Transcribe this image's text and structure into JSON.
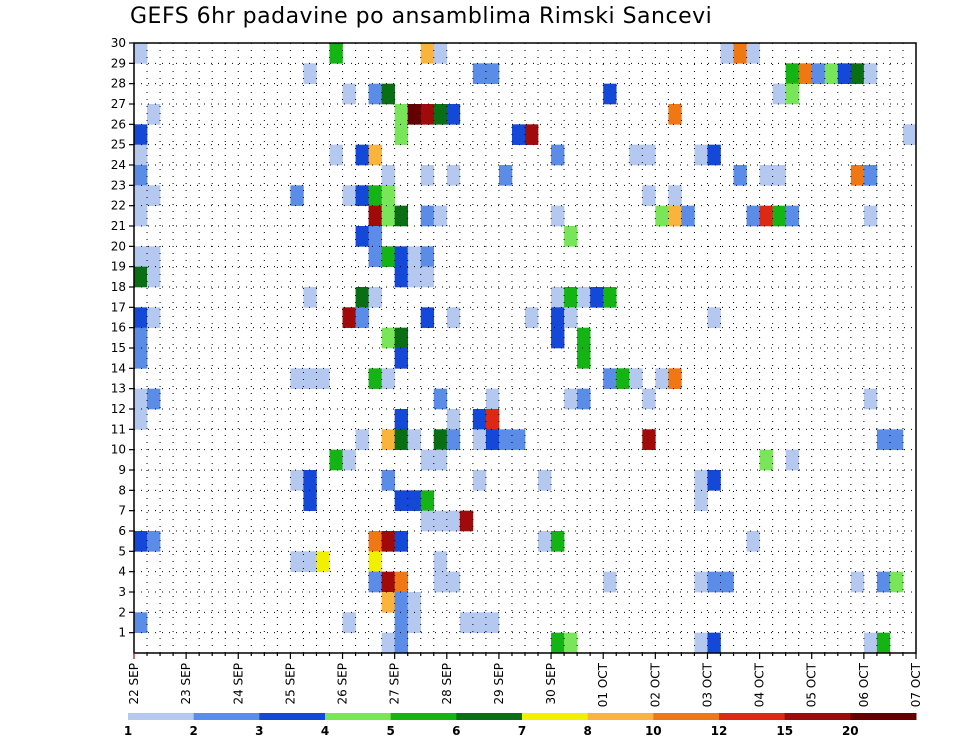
{
  "title": "GEFS 6hr padavine po ansamblima Rimski Sancevi",
  "chart_data": {
    "type": "heatmap",
    "title": "GEFS 6hr padavine po ansamblima Rimski Sancevi",
    "x_tick_labels": [
      "22 SEP",
      "23 SEP",
      "24 SEP",
      "25 SEP",
      "26 SEP",
      "27 SEP",
      "28 SEP",
      "29 SEP",
      "30 SEP",
      "01 OCT",
      "02 OCT",
      "03 OCT",
      "04 OCT",
      "05 OCT",
      "06 OCT",
      "07 OCT"
    ],
    "x_unit": "6-hour step",
    "x_range": [
      0,
      60
    ],
    "y_tick_labels": [
      "1",
      "2",
      "3",
      "4",
      "5",
      "6",
      "7",
      "8",
      "9",
      "10",
      "11",
      "12",
      "13",
      "14",
      "15",
      "16",
      "17",
      "18",
      "19",
      "20",
      "21",
      "22",
      "23",
      "24",
      "25",
      "26",
      "27",
      "28",
      "29",
      "30"
    ],
    "y_range": [
      0,
      30
    ],
    "grid": true,
    "colorbar": {
      "labels": [
        "1",
        "2",
        "3",
        "4",
        "5",
        "6",
        "7",
        "8",
        "10",
        "12",
        "15",
        "20"
      ],
      "colors": [
        "#b4c8f0",
        "#5a8ce8",
        "#1448d8",
        "#78e658",
        "#14b414",
        "#0a6e14",
        "#f0f000",
        "#fab43c",
        "#f07814",
        "#dc2814",
        "#a00a0a",
        "#640000"
      ]
    },
    "cells": [
      [
        1,
        30,
        1
      ],
      [
        16,
        30,
        5
      ],
      [
        23,
        30,
        8
      ],
      [
        24,
        30,
        1
      ],
      [
        46,
        30,
        1
      ],
      [
        47,
        30,
        9
      ],
      [
        48,
        30,
        1
      ],
      [
        14,
        29,
        1
      ],
      [
        27,
        29,
        2
      ],
      [
        28,
        29,
        2
      ],
      [
        51,
        29,
        5
      ],
      [
        52,
        29,
        9
      ],
      [
        53,
        29,
        2
      ],
      [
        54,
        29,
        4
      ],
      [
        55,
        29,
        3
      ],
      [
        56,
        29,
        6
      ],
      [
        57,
        29,
        1
      ],
      [
        17,
        28,
        1
      ],
      [
        19,
        28,
        2
      ],
      [
        20,
        28,
        6
      ],
      [
        37,
        28,
        3
      ],
      [
        50,
        28,
        1
      ],
      [
        51,
        28,
        4
      ],
      [
        2,
        27,
        1
      ],
      [
        21,
        27,
        4
      ],
      [
        22,
        27,
        12
      ],
      [
        23,
        27,
        11
      ],
      [
        24,
        27,
        6
      ],
      [
        25,
        27,
        3
      ],
      [
        42,
        27,
        9
      ],
      [
        1,
        26,
        3
      ],
      [
        21,
        26,
        4
      ],
      [
        30,
        26,
        3
      ],
      [
        31,
        26,
        11
      ],
      [
        60,
        26,
        1
      ],
      [
        1,
        25,
        1
      ],
      [
        16,
        25,
        1
      ],
      [
        18,
        25,
        3
      ],
      [
        19,
        25,
        8
      ],
      [
        33,
        25,
        2
      ],
      [
        39,
        25,
        1
      ],
      [
        40,
        25,
        1
      ],
      [
        44,
        25,
        1
      ],
      [
        45,
        25,
        3
      ],
      [
        1,
        24,
        2
      ],
      [
        20,
        24,
        1
      ],
      [
        23,
        24,
        1
      ],
      [
        25,
        24,
        1
      ],
      [
        29,
        24,
        2
      ],
      [
        47,
        24,
        2
      ],
      [
        49,
        24,
        1
      ],
      [
        50,
        24,
        1
      ],
      [
        56,
        24,
        9
      ],
      [
        57,
        24,
        2
      ],
      [
        1,
        23,
        1
      ],
      [
        2,
        23,
        1
      ],
      [
        13,
        23,
        2
      ],
      [
        17,
        23,
        1
      ],
      [
        18,
        23,
        3
      ],
      [
        19,
        23,
        5
      ],
      [
        20,
        23,
        4
      ],
      [
        40,
        23,
        1
      ],
      [
        42,
        23,
        1
      ],
      [
        1,
        22,
        1
      ],
      [
        19,
        22,
        11
      ],
      [
        20,
        22,
        4
      ],
      [
        21,
        22,
        6
      ],
      [
        23,
        22,
        2
      ],
      [
        24,
        22,
        1
      ],
      [
        33,
        22,
        1
      ],
      [
        41,
        22,
        4
      ],
      [
        42,
        22,
        8
      ],
      [
        43,
        22,
        2
      ],
      [
        48,
        22,
        2
      ],
      [
        49,
        22,
        10
      ],
      [
        50,
        22,
        5
      ],
      [
        51,
        22,
        2
      ],
      [
        57,
        22,
        1
      ],
      [
        18,
        21,
        3
      ],
      [
        19,
        21,
        2
      ],
      [
        34,
        21,
        4
      ],
      [
        1,
        20,
        1
      ],
      [
        2,
        20,
        1
      ],
      [
        19,
        20,
        2
      ],
      [
        20,
        20,
        5
      ],
      [
        21,
        20,
        3
      ],
      [
        22,
        20,
        1
      ],
      [
        23,
        20,
        2
      ],
      [
        1,
        19,
        6
      ],
      [
        2,
        19,
        1
      ],
      [
        21,
        19,
        3
      ],
      [
        22,
        19,
        1
      ],
      [
        23,
        19,
        1
      ],
      [
        14,
        18,
        1
      ],
      [
        18,
        18,
        6
      ],
      [
        19,
        18,
        1
      ],
      [
        33,
        18,
        1
      ],
      [
        34,
        18,
        5
      ],
      [
        35,
        18,
        1
      ],
      [
        36,
        18,
        3
      ],
      [
        37,
        18,
        5
      ],
      [
        1,
        17,
        3
      ],
      [
        2,
        17,
        1
      ],
      [
        17,
        17,
        11
      ],
      [
        18,
        17,
        2
      ],
      [
        23,
        17,
        3
      ],
      [
        25,
        17,
        1
      ],
      [
        31,
        17,
        1
      ],
      [
        33,
        17,
        3
      ],
      [
        34,
        17,
        1
      ],
      [
        45,
        17,
        1
      ],
      [
        1,
        16,
        2
      ],
      [
        20,
        16,
        4
      ],
      [
        21,
        16,
        6
      ],
      [
        33,
        16,
        3
      ],
      [
        35,
        16,
        5
      ],
      [
        1,
        15,
        2
      ],
      [
        21,
        15,
        3
      ],
      [
        35,
        15,
        5
      ],
      [
        13,
        14,
        1
      ],
      [
        14,
        14,
        1
      ],
      [
        15,
        14,
        1
      ],
      [
        19,
        14,
        5
      ],
      [
        20,
        14,
        1
      ],
      [
        37,
        14,
        2
      ],
      [
        38,
        14,
        5
      ],
      [
        39,
        14,
        1
      ],
      [
        41,
        14,
        1
      ],
      [
        42,
        14,
        9
      ],
      [
        1,
        13,
        1
      ],
      [
        2,
        13,
        2
      ],
      [
        24,
        13,
        2
      ],
      [
        28,
        13,
        1
      ],
      [
        34,
        13,
        1
      ],
      [
        35,
        13,
        2
      ],
      [
        40,
        13,
        1
      ],
      [
        57,
        13,
        1
      ],
      [
        1,
        12,
        1
      ],
      [
        21,
        12,
        3
      ],
      [
        25,
        12,
        1
      ],
      [
        27,
        12,
        3
      ],
      [
        28,
        12,
        10
      ],
      [
        18,
        11,
        1
      ],
      [
        20,
        11,
        8
      ],
      [
        21,
        11,
        6
      ],
      [
        22,
        11,
        1
      ],
      [
        24,
        11,
        6
      ],
      [
        25,
        11,
        2
      ],
      [
        27,
        11,
        1
      ],
      [
        28,
        11,
        3
      ],
      [
        29,
        11,
        2
      ],
      [
        30,
        11,
        2
      ],
      [
        40,
        11,
        11
      ],
      [
        58,
        11,
        2
      ],
      [
        59,
        11,
        2
      ],
      [
        16,
        10,
        5
      ],
      [
        17,
        10,
        1
      ],
      [
        23,
        10,
        1
      ],
      [
        24,
        10,
        1
      ],
      [
        49,
        10,
        4
      ],
      [
        51,
        10,
        1
      ],
      [
        13,
        9,
        1
      ],
      [
        14,
        9,
        3
      ],
      [
        20,
        9,
        2
      ],
      [
        27,
        9,
        1
      ],
      [
        32,
        9,
        1
      ],
      [
        44,
        9,
        1
      ],
      [
        45,
        9,
        3
      ],
      [
        14,
        8,
        3
      ],
      [
        21,
        8,
        3
      ],
      [
        22,
        8,
        3
      ],
      [
        23,
        8,
        5
      ],
      [
        44,
        8,
        1
      ],
      [
        23,
        7,
        1
      ],
      [
        24,
        7,
        1
      ],
      [
        25,
        7,
        1
      ],
      [
        26,
        7,
        11
      ],
      [
        1,
        6,
        3
      ],
      [
        2,
        6,
        2
      ],
      [
        19,
        6,
        9
      ],
      [
        20,
        6,
        11
      ],
      [
        21,
        6,
        3
      ],
      [
        32,
        6,
        1
      ],
      [
        33,
        6,
        5
      ],
      [
        48,
        6,
        1
      ],
      [
        13,
        5,
        1
      ],
      [
        14,
        5,
        1
      ],
      [
        15,
        5,
        7
      ],
      [
        19,
        5,
        7
      ],
      [
        24,
        5,
        1
      ],
      [
        19,
        4,
        2
      ],
      [
        20,
        4,
        11
      ],
      [
        21,
        4,
        9
      ],
      [
        24,
        4,
        1
      ],
      [
        25,
        4,
        1
      ],
      [
        37,
        4,
        1
      ],
      [
        44,
        4,
        1
      ],
      [
        45,
        4,
        2
      ],
      [
        46,
        4,
        2
      ],
      [
        56,
        4,
        1
      ],
      [
        58,
        4,
        2
      ],
      [
        59,
        4,
        4
      ],
      [
        20,
        3,
        8
      ],
      [
        21,
        3,
        2
      ],
      [
        22,
        3,
        1
      ],
      [
        1,
        2,
        2
      ],
      [
        17,
        2,
        1
      ],
      [
        21,
        2,
        2
      ],
      [
        22,
        2,
        1
      ],
      [
        26,
        2,
        1
      ],
      [
        27,
        2,
        1
      ],
      [
        28,
        2,
        1
      ],
      [
        20,
        1,
        1
      ],
      [
        21,
        1,
        2
      ],
      [
        33,
        1,
        5
      ],
      [
        34,
        1,
        4
      ],
      [
        44,
        1,
        1
      ],
      [
        45,
        1,
        3
      ],
      [
        57,
        1,
        1
      ],
      [
        58,
        1,
        5
      ]
    ]
  }
}
